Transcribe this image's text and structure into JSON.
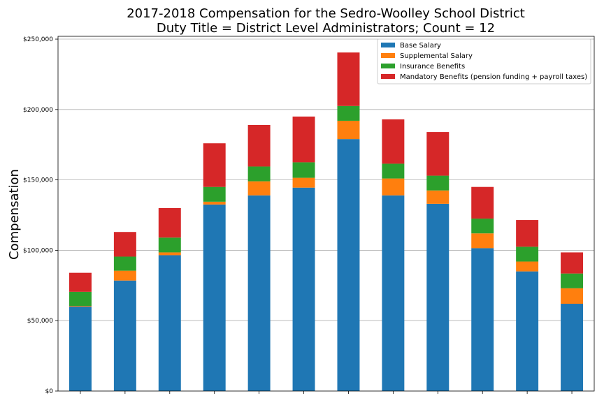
{
  "chart_data": {
    "type": "bar",
    "stacked": true,
    "title": [
      "2017-2018 Compensation for the Sedro-Woolley School District",
      "Duty Title = District Level Administrators; Count = 12"
    ],
    "xlabel": "",
    "ylabel": "Compensation",
    "ylim": [
      0,
      252000
    ],
    "yticks": [
      0,
      50000,
      100000,
      150000,
      200000,
      250000
    ],
    "ytick_labels": [
      "$0",
      "$50,000",
      "$100,000",
      "$150,000",
      "$200,000",
      "$250,000"
    ],
    "grid": "horizontal",
    "legend_position": "top-right",
    "categories": [
      "",
      "",
      "",
      "",
      "",
      "",
      "",
      "",
      "",
      "",
      "",
      ""
    ],
    "series": [
      {
        "name": "Base Salary",
        "color": "#1f77b4",
        "values": [
          60000,
          78500,
          96500,
          132500,
          139000,
          144500,
          179000,
          139000,
          133000,
          101500,
          85000,
          62000
        ]
      },
      {
        "name": "Supplemental Salary",
        "color": "#ff7f0e",
        "values": [
          500,
          7000,
          2000,
          2000,
          10000,
          7000,
          13000,
          12000,
          9500,
          10500,
          7000,
          11000
        ]
      },
      {
        "name": "Insurance Benefits",
        "color": "#2ca02c",
        "values": [
          10000,
          10000,
          10500,
          10500,
          10500,
          11000,
          10500,
          10500,
          10500,
          10500,
          10500,
          10500
        ]
      },
      {
        "name": "Mandatory Benefits (pension funding + payroll taxes)",
        "color": "#d62728",
        "values": [
          13500,
          17500,
          21000,
          31000,
          29500,
          32500,
          38000,
          31500,
          31000,
          22500,
          19000,
          15000
        ]
      }
    ]
  }
}
